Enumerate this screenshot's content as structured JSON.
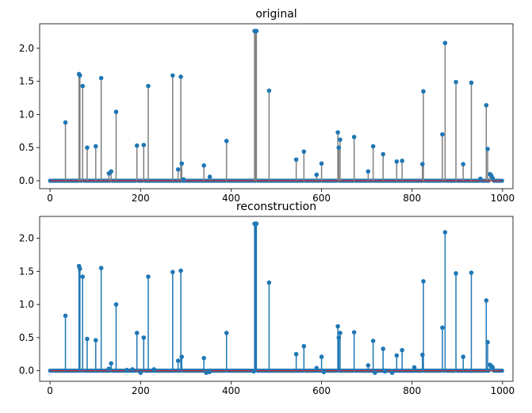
{
  "chart_data": [
    {
      "type": "stem",
      "title": "original",
      "xlabel": "",
      "ylabel": "",
      "xlim": [
        -23,
        1023
      ],
      "ylim": [
        -0.12,
        2.37
      ],
      "x_ticks": [
        0,
        200,
        400,
        600,
        800,
        1000
      ],
      "y_ticks": [
        0.0,
        0.5,
        1.0,
        1.5,
        2.0
      ],
      "x_tick_labels": [
        "0",
        "200",
        "400",
        "600",
        "800",
        "1000"
      ],
      "y_tick_labels": [
        "0.0",
        "0.5",
        "1.0",
        "1.5",
        "2.0"
      ],
      "n_points": 1000,
      "baseline": 0,
      "grid": false,
      "stem_color": "#808080",
      "marker_color": "#1f77b4",
      "baseline_color": "#d62728",
      "points": [
        [
          34,
          0.88
        ],
        [
          64,
          1.61
        ],
        [
          66,
          1.59
        ],
        [
          72,
          1.43
        ],
        [
          82,
          0.5
        ],
        [
          101,
          0.52
        ],
        [
          113,
          1.55
        ],
        [
          130,
          0.11
        ],
        [
          135,
          0.14
        ],
        [
          146,
          1.04
        ],
        [
          192,
          0.53
        ],
        [
          207,
          0.54
        ],
        [
          217,
          1.43
        ],
        [
          271,
          1.59
        ],
        [
          283,
          0.17
        ],
        [
          289,
          1.57
        ],
        [
          291,
          0.26
        ],
        [
          295,
          0.02
        ],
        [
          340,
          0.23
        ],
        [
          353,
          0.06
        ],
        [
          390,
          0.6
        ],
        [
          452,
          2.26
        ],
        [
          454,
          2.26
        ],
        [
          456,
          2.26
        ],
        [
          484,
          1.36
        ],
        [
          544,
          0.32
        ],
        [
          561,
          0.44
        ],
        [
          589,
          0.09
        ],
        [
          600,
          0.26
        ],
        [
          636,
          0.73
        ],
        [
          638,
          0.5
        ],
        [
          641,
          0.62
        ],
        [
          672,
          0.66
        ],
        [
          703,
          0.14
        ],
        [
          714,
          0.52
        ],
        [
          736,
          0.4
        ],
        [
          766,
          0.29
        ],
        [
          778,
          0.3
        ],
        [
          823,
          0.25
        ],
        [
          825,
          1.35
        ],
        [
          867,
          0.7
        ],
        [
          873,
          2.08
        ],
        [
          897,
          1.49
        ],
        [
          913,
          0.25
        ],
        [
          931,
          1.48
        ],
        [
          951,
          0.03
        ],
        [
          964,
          1.14
        ],
        [
          967,
          0.48
        ],
        [
          972,
          0.1
        ],
        [
          975,
          0.08
        ],
        [
          978,
          0.04
        ]
      ]
    },
    {
      "type": "stem",
      "title": "reconstruction",
      "xlabel": "",
      "ylabel": "",
      "xlim": [
        -23,
        1023
      ],
      "ylim": [
        -0.16,
        2.33
      ],
      "x_ticks": [
        0,
        200,
        400,
        600,
        800,
        1000
      ],
      "y_ticks": [
        0.0,
        0.5,
        1.0,
        1.5,
        2.0
      ],
      "x_tick_labels": [
        "0",
        "200",
        "400",
        "600",
        "800",
        "1000"
      ],
      "y_tick_labels": [
        "0.0",
        "0.5",
        "1.0",
        "1.5",
        "2.0"
      ],
      "n_points": 1000,
      "baseline": 0,
      "grid": false,
      "stem_color": "#1f77b4",
      "marker_color": "#1f77b4",
      "baseline_color": "#d62728",
      "points": [
        [
          34,
          0.83
        ],
        [
          64,
          1.58
        ],
        [
          66,
          1.54
        ],
        [
          72,
          1.42
        ],
        [
          82,
          0.48
        ],
        [
          101,
          0.46
        ],
        [
          113,
          1.55
        ],
        [
          130,
          0.03
        ],
        [
          135,
          0.11
        ],
        [
          146,
          1.0
        ],
        [
          170,
          0.01
        ],
        [
          182,
          0.02
        ],
        [
          192,
          0.57
        ],
        [
          200,
          -0.03
        ],
        [
          207,
          0.5
        ],
        [
          217,
          1.42
        ],
        [
          230,
          0.02
        ],
        [
          271,
          1.49
        ],
        [
          283,
          0.15
        ],
        [
          289,
          1.51
        ],
        [
          291,
          0.21
        ],
        [
          340,
          0.19
        ],
        [
          345,
          -0.03
        ],
        [
          352,
          -0.02
        ],
        [
          390,
          0.57
        ],
        [
          450,
          -0.01
        ],
        [
          452,
          2.22
        ],
        [
          454,
          2.22
        ],
        [
          456,
          2.22
        ],
        [
          484,
          1.33
        ],
        [
          544,
          0.25
        ],
        [
          561,
          0.37
        ],
        [
          589,
          0.04
        ],
        [
          600,
          0.21
        ],
        [
          605,
          -0.02
        ],
        [
          636,
          0.67
        ],
        [
          638,
          0.5
        ],
        [
          641,
          0.57
        ],
        [
          672,
          0.58
        ],
        [
          703,
          0.08
        ],
        [
          714,
          0.45
        ],
        [
          718,
          -0.03
        ],
        [
          736,
          0.33
        ],
        [
          740,
          -0.01
        ],
        [
          756,
          -0.03
        ],
        [
          766,
          0.23
        ],
        [
          778,
          0.31
        ],
        [
          805,
          0.05
        ],
        [
          823,
          0.24
        ],
        [
          825,
          1.35
        ],
        [
          867,
          0.65
        ],
        [
          873,
          2.09
        ],
        [
          897,
          1.47
        ],
        [
          913,
          0.21
        ],
        [
          931,
          1.48
        ],
        [
          964,
          1.06
        ],
        [
          967,
          0.43
        ],
        [
          972,
          0.09
        ],
        [
          975,
          0.07
        ],
        [
          978,
          0.05
        ]
      ]
    }
  ]
}
